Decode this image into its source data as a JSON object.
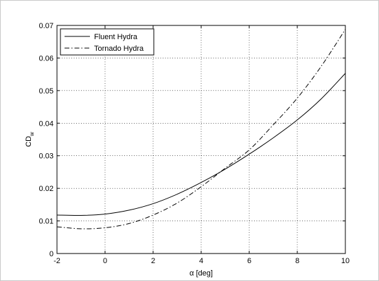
{
  "chart_data": {
    "type": "line",
    "xlabel": "α [deg]",
    "ylabel": "CD",
    "ylabel_sub": "w",
    "xlim": [
      -2,
      10
    ],
    "ylim": [
      0,
      0.07
    ],
    "xticks": [
      -2,
      0,
      2,
      4,
      6,
      8,
      10
    ],
    "yticks": [
      0,
      0.01,
      0.02,
      0.03,
      0.04,
      0.05,
      0.06,
      0.07
    ],
    "xtick_labels": [
      "-2",
      "0",
      "2",
      "4",
      "6",
      "8",
      "10"
    ],
    "ytick_labels": [
      "0",
      "0.01",
      "0.02",
      "0.03",
      "0.04",
      "0.05",
      "0.06",
      "0.07"
    ],
    "grid": true,
    "legend_position": "top-left",
    "series": [
      {
        "name": "Fluent Hydra",
        "style": "solid",
        "x": [
          -2,
          -1,
          0,
          1,
          2,
          3,
          4,
          5,
          6,
          7,
          8,
          9,
          10
        ],
        "y": [
          0.0118,
          0.0117,
          0.0121,
          0.0133,
          0.0153,
          0.0182,
          0.0218,
          0.0259,
          0.0305,
          0.0355,
          0.041,
          0.0475,
          0.0553
        ]
      },
      {
        "name": "Tornado Hydra",
        "style": "dashdot",
        "x": [
          -2,
          -1,
          0,
          1,
          2,
          3,
          4,
          5,
          6,
          7,
          8,
          9,
          10
        ],
        "y": [
          0.0082,
          0.0076,
          0.0079,
          0.0092,
          0.0118,
          0.0155,
          0.0205,
          0.0262,
          0.0318,
          0.0395,
          0.0477,
          0.0575,
          0.0688
        ]
      }
    ]
  }
}
